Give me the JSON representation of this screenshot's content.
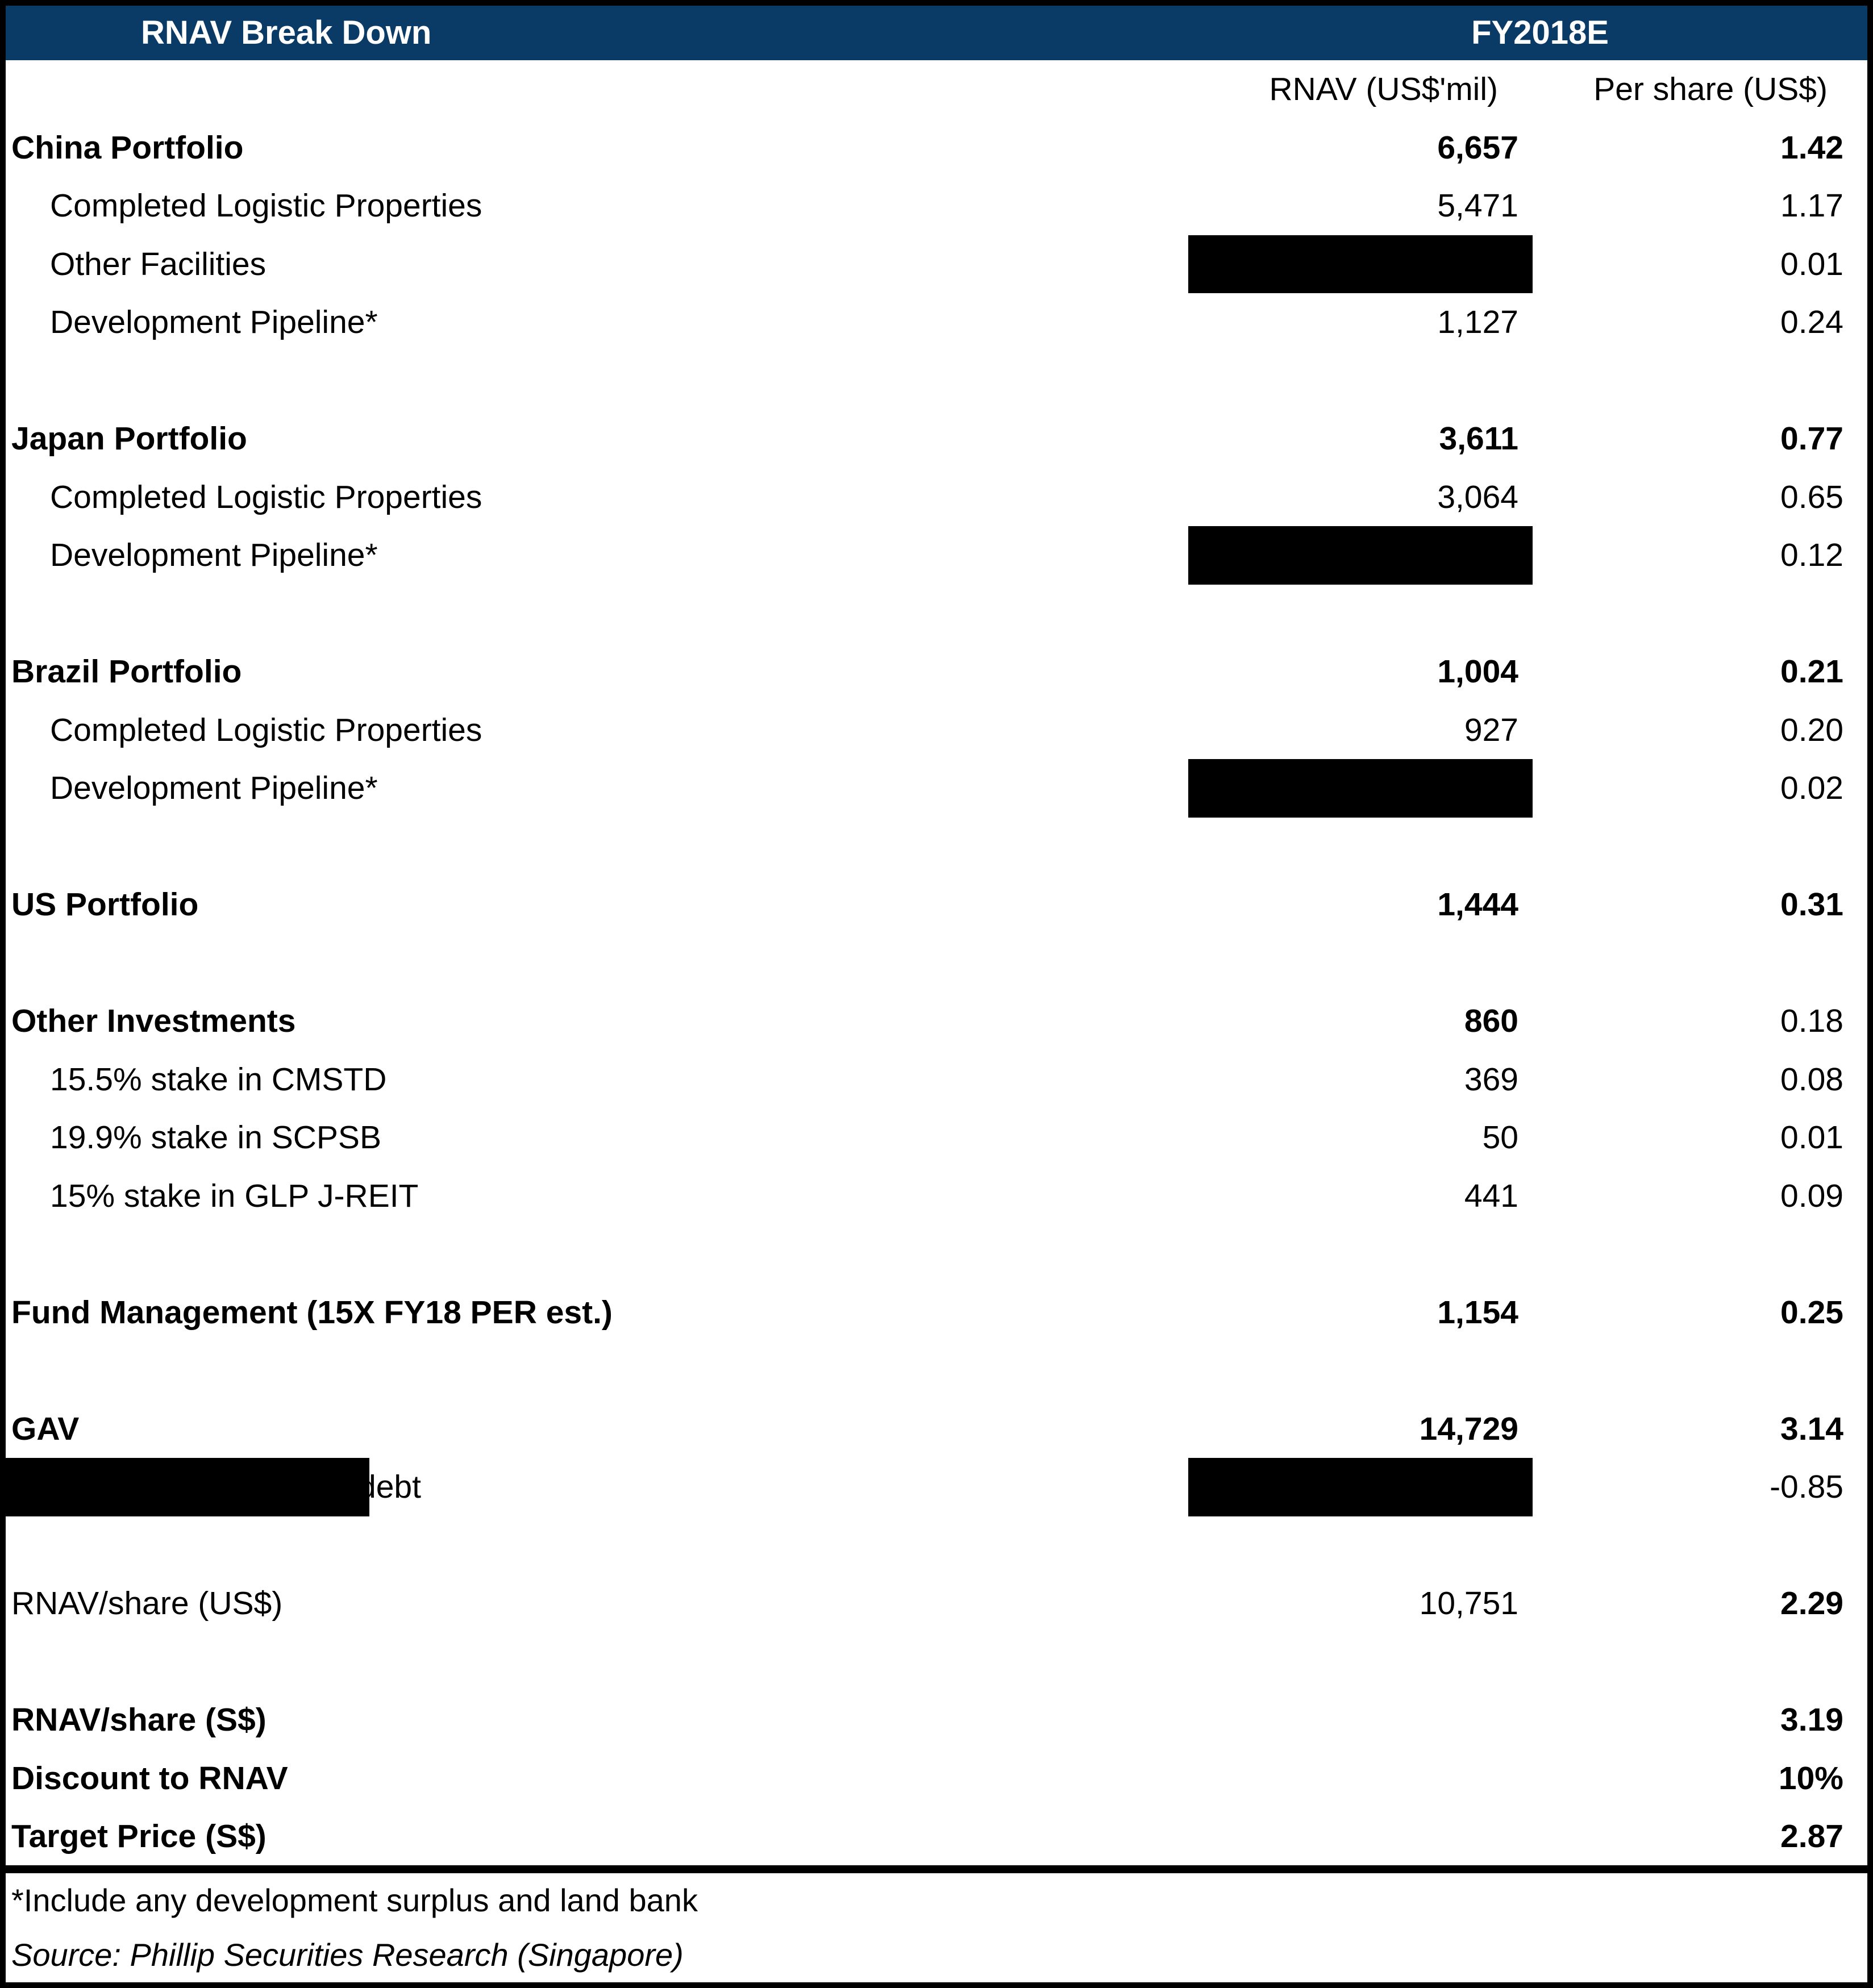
{
  "header": {
    "title": "RNAV Break Down",
    "period": "FY2018E",
    "bg_color": "#0a3a66",
    "text_color": "#ffffff"
  },
  "columns": {
    "col1": "RNAV (US$'mil)",
    "col2": "Per share (US$)"
  },
  "colors": {
    "redaction": "#000000",
    "border": "#000000",
    "body_bg": "#ffffff",
    "body_text": "#000000"
  },
  "rows": [
    {
      "type": "subheader"
    },
    {
      "label": "China Portfolio",
      "v1": "6,657",
      "v2": "1.42",
      "label_bold": true,
      "v1_bold": true,
      "v2_bold": true
    },
    {
      "label": "Completed Logistic Properties",
      "v1": "5,471",
      "v2": "1.17",
      "indent": true
    },
    {
      "label": "Other Facilities",
      "v1": "",
      "v2": "0.01",
      "indent": true,
      "v1_redacted": true
    },
    {
      "label": "Development Pipeline*",
      "v1": "1,127",
      "v2": "0.24",
      "indent": true
    },
    {
      "blank": true
    },
    {
      "label": "Japan Portfolio",
      "v1": "3,611",
      "v2": "0.77",
      "label_bold": true,
      "v1_bold": true,
      "v2_bold": true
    },
    {
      "label": "Completed Logistic Properties",
      "v1": "3,064",
      "v2": "0.65",
      "indent": true
    },
    {
      "label": "Development Pipeline*",
      "v1": "",
      "v2": "0.12",
      "indent": true,
      "v1_redacted": true
    },
    {
      "blank": true
    },
    {
      "label": "Brazil Portfolio",
      "v1": "1,004",
      "v2": "0.21",
      "label_bold": true,
      "v1_bold": true,
      "v2_bold": true
    },
    {
      "label": "Completed Logistic Properties",
      "v1": "927",
      "v2": "0.20",
      "indent": true
    },
    {
      "label": "Development Pipeline*",
      "v1": "",
      "v2": "0.02",
      "indent": true,
      "v1_redacted": true
    },
    {
      "blank": true
    },
    {
      "label": "US Portfolio",
      "v1": "1,444",
      "v2": "0.31",
      "label_bold": true,
      "v1_bold": true,
      "v2_bold": true
    },
    {
      "blank": true
    },
    {
      "label": "Other Investments",
      "v1": "860",
      "v2": "0.18",
      "label_bold": true,
      "v1_bold": true,
      "v2_bold": false
    },
    {
      "label": "15.5% stake in CMSTD",
      "v1": "369",
      "v2": "0.08",
      "indent": true
    },
    {
      "label": "19.9% stake in SCPSB",
      "v1": "50",
      "v2": "0.01",
      "indent": true
    },
    {
      "label": "15% stake in GLP J-REIT",
      "v1": "441",
      "v2": "0.09",
      "indent": true
    },
    {
      "blank": true
    },
    {
      "label": "Fund Management (15X FY18 PER est.)",
      "v1": "1,154",
      "v2": "0.25",
      "label_bold": true,
      "v1_bold": true,
      "v2_bold": true
    },
    {
      "blank": true
    },
    {
      "label": "GAV",
      "v1": "14,729",
      "v2": "3.14",
      "label_bold": true,
      "v1_bold": true,
      "v2_bold": true
    },
    {
      "label": "debt",
      "v1": "",
      "v2": "-0.85",
      "label_redacted": true,
      "v1_redacted": true
    },
    {
      "blank": true
    },
    {
      "label": "RNAV/share (US$)",
      "v1": "10,751",
      "v2": "2.29",
      "v2_bold": true
    },
    {
      "blank": true
    },
    {
      "label": "RNAV/share (S$)",
      "v1": "",
      "v2": "3.19",
      "label_bold": true,
      "v2_bold": true
    },
    {
      "label": "Discount to RNAV",
      "v1": "",
      "v2": "10%",
      "label_bold": true,
      "v2_bold": true
    },
    {
      "label": "Target Price (S$)",
      "v1": "",
      "v2": "2.87",
      "label_bold": true,
      "v2_bold": true
    }
  ],
  "footnotes": {
    "asterisk_note": "*Include any development surplus and land bank",
    "source_note": "Source: Phillip Securities Research (Singapore)"
  }
}
